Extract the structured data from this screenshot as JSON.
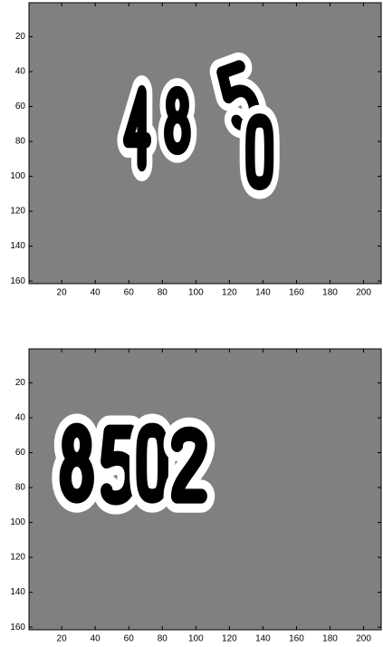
{
  "chart_data": [
    {
      "type": "image",
      "xlim": [
        0.5,
        210.5
      ],
      "ylim": [
        0.5,
        161.5
      ],
      "xticks": [
        20,
        40,
        60,
        80,
        100,
        120,
        140,
        160,
        180,
        200
      ],
      "yticks": [
        20,
        40,
        60,
        80,
        100,
        120,
        140,
        160
      ],
      "y_reversed": true,
      "background": "#808080"
    },
    {
      "type": "image",
      "xlim": [
        0.5,
        210.5
      ],
      "ylim": [
        0.5,
        161.5
      ],
      "xticks": [
        20,
        40,
        60,
        80,
        100,
        120,
        140,
        160,
        180,
        200
      ],
      "yticks": [
        20,
        40,
        60,
        80,
        100,
        120,
        140,
        160
      ],
      "y_reversed": true,
      "background": "#808080"
    }
  ]
}
